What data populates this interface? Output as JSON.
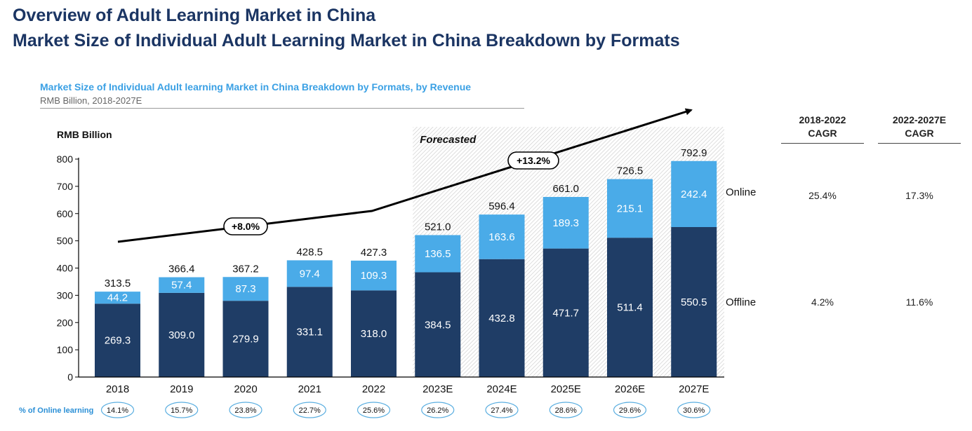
{
  "header": {
    "title_line1": "Overview of Adult Learning Market in China",
    "title_line2": "Market Size of Individual Adult Learning Market in China Breakdown by Formats"
  },
  "chart_data": {
    "type": "bar",
    "stacked": true,
    "title": "Market Size of Individual Adult learning Market in China Breakdown by Formats, by Revenue",
    "subtitle": "RMB Billion, 2018-2027E",
    "ylabel": "RMB Billion",
    "ylim": [
      0,
      800
    ],
    "yticks": [
      0,
      100,
      200,
      300,
      400,
      500,
      600,
      700,
      800
    ],
    "categories": [
      "2018",
      "2019",
      "2020",
      "2021",
      "2022",
      "2023E",
      "2024E",
      "2025E",
      "2026E",
      "2027E"
    ],
    "series": [
      {
        "name": "Offline",
        "color": "#1f3d66",
        "values": [
          269.3,
          309.0,
          279.9,
          331.1,
          318.0,
          384.5,
          432.8,
          471.7,
          511.4,
          550.5
        ]
      },
      {
        "name": "Online",
        "color": "#4aabe8",
        "values": [
          44.2,
          57.4,
          87.3,
          97.4,
          109.3,
          136.5,
          163.6,
          189.3,
          215.1,
          242.4
        ]
      }
    ],
    "totals": [
      "313.5",
      "366.4",
      "367.2",
      "428.5",
      "427.3",
      "521.0",
      "596.4",
      "661.0",
      "726.5",
      "792.9"
    ],
    "forecast_label": "Forecasted",
    "forecast_start_category": "2023E",
    "cagr_annotations": [
      "+8.0%",
      "+13.2%"
    ],
    "online_share": {
      "label": "% of Online learning",
      "values": [
        "14.1%",
        "15.7%",
        "23.8%",
        "22.7%",
        "25.6%",
        "26.2%",
        "27.4%",
        "28.6%",
        "29.6%",
        "30.6%"
      ]
    },
    "grid": false,
    "legend": "right"
  },
  "cagr_table": {
    "headers": [
      "2018-2022\nCAGR",
      "2022-2027E\nCAGR"
    ],
    "rows": [
      {
        "label": "Online",
        "values": [
          "25.4%",
          "17.3%"
        ]
      },
      {
        "label": "Offline",
        "values": [
          "4.2%",
          "11.6%"
        ]
      }
    ]
  },
  "colors": {
    "title": "#1b3563",
    "chart_title": "#3aa0e4",
    "online": "#4aabe8",
    "offline": "#1f3d66",
    "pill_border": "#5aaee0",
    "share_label": "#2a8fd6"
  }
}
